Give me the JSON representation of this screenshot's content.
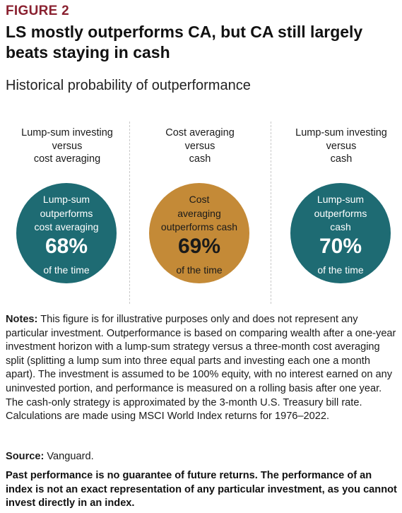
{
  "figure_label": "FIGURE 2",
  "title": "LS mostly outperforms CA, but CA still largely beats staying in cash",
  "subtitle": "Historical probability of outperformance",
  "chart_data": {
    "type": "percentage-circles",
    "panels": [
      {
        "heading_lines": [
          "Lump-sum investing",
          "versus",
          "cost averaging"
        ],
        "circle_lines": [
          "Lump-sum",
          "outperforms",
          "cost averaging"
        ],
        "percent_label": "68%",
        "value": 68,
        "footer": "of the time",
        "color": "#1e6b73",
        "text_color": "#ffffff"
      },
      {
        "heading_lines": [
          "Cost averaging",
          "versus",
          "cash"
        ],
        "circle_lines": [
          "Cost",
          "averaging",
          "outperforms cash"
        ],
        "percent_label": "69%",
        "value": 69,
        "footer": "of the time",
        "color": "#c48a37",
        "text_color": "#1a1a1a"
      },
      {
        "heading_lines": [
          "Lump-sum investing",
          "versus",
          "cash"
        ],
        "circle_lines": [
          "Lump-sum",
          "outperforms",
          "cash"
        ],
        "percent_label": "70%",
        "value": 70,
        "footer": "of the time",
        "color": "#1e6b73",
        "text_color": "#ffffff"
      }
    ]
  },
  "notes": {
    "label": "Notes:",
    "text": " This figure is for illustrative purposes only and does not represent any particular investment. Outperformance is based on comparing wealth after a one-year investment horizon with a lump-sum strategy versus a three-month cost averaging split (splitting a lump sum into three equal parts and investing each one a month apart). The investment is assumed to be 100% equity, with no interest earned on any uninvested portion, and performance is measured on a rolling basis after one year. The cash-only strategy is approximated by the 3-month U.S. Treasury bill rate. Calculations are made using MSCI World Index returns for 1976–2022."
  },
  "source": {
    "label": "Source:",
    "text": " Vanguard."
  },
  "disclaimer": "Past performance is no guarantee of future returns. The performance of an index is not an exact representation of any particular investment, as you cannot invest directly in an index."
}
